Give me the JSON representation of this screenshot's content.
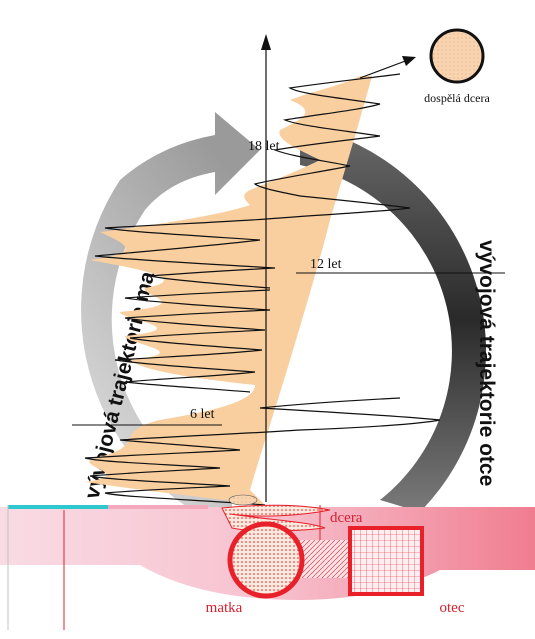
{
  "labels": {
    "mother_trajectory": "vývojová trajektorie matky",
    "father_trajectory": "vývojová trajektorie otce",
    "adult_daughter": "dospělá dcera",
    "daughter": "dcera",
    "mother": "matka",
    "father": "otec",
    "age_18": "18 let",
    "age_12": "12 let",
    "age_6": "6 let"
  },
  "colors": {
    "fill_peach": "#f9cfa0",
    "mother_arrow": "#b9b9b9",
    "father_arrow": "#3c3c3c",
    "red_accent": "#e8202a",
    "pink_band": "#f7c5d1",
    "cyan_strip": "#2ec8d0",
    "text_red": "#d62030"
  }
}
